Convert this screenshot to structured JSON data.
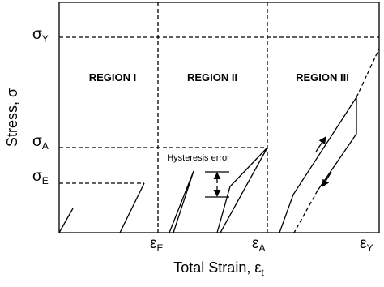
{
  "y_axis": {
    "label": "Stress, σ",
    "levels": [
      {
        "symbol": "σ",
        "subscript": "Y"
      },
      {
        "symbol": "σ",
        "subscript": "A"
      },
      {
        "symbol": "σ",
        "subscript": "E"
      }
    ]
  },
  "x_axis": {
    "label": "Total Strain, ε",
    "label_subscript": "t",
    "levels": [
      {
        "symbol": "ε",
        "subscript": "E"
      },
      {
        "symbol": "ε",
        "subscript": "A"
      },
      {
        "symbol": "ε",
        "subscript": "Y"
      }
    ]
  },
  "regions": [
    "REGION I",
    "REGION II",
    "REGION III"
  ],
  "annotation": "Hysteresis error"
}
